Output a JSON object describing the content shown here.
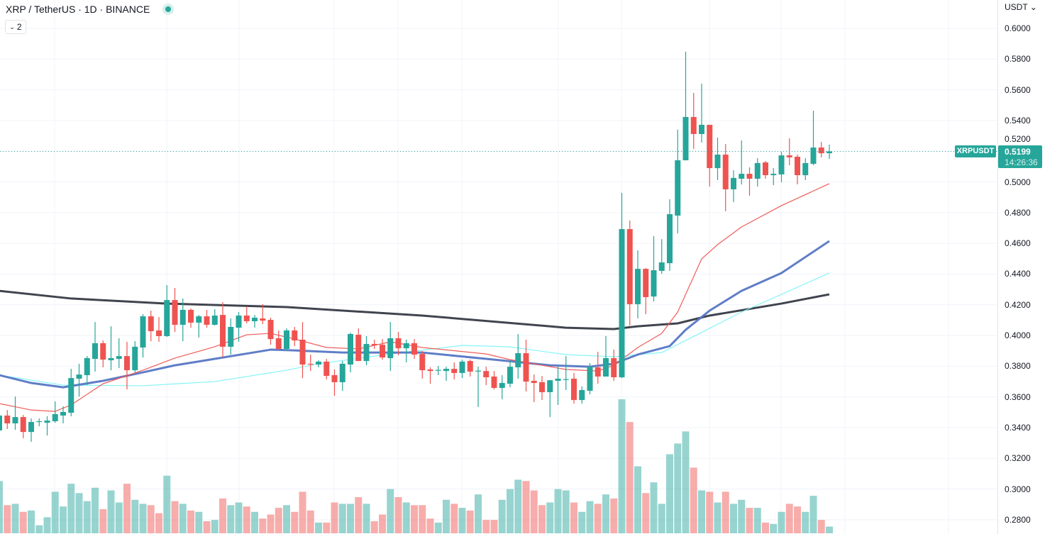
{
  "header": {
    "title": "XRP / TetherUS · 1D · BINANCE",
    "indicator_toggle_label": "2",
    "status_color": "#26a69a"
  },
  "price_axis": {
    "currency_label": "USDT ⌄"
  },
  "last_price": {
    "symbol": "XRPUSDT",
    "price": "0.5199",
    "countdown": "14:26:36"
  },
  "colors": {
    "up": "#26a69a",
    "down": "#ef5350",
    "ma_red": "#ef5350",
    "ma_blue": "#5676c4",
    "ma_cyan": "#7ff3f8",
    "ma_dark": "#363a45"
  },
  "chart_data": {
    "type": "candlestick",
    "ylim": [
      0.27,
      0.6
    ],
    "yticks": [
      "0.6000",
      "0.5800",
      "0.5600",
      "0.5400",
      "0.5200",
      "0.5000",
      "0.4800",
      "0.4600",
      "0.4400",
      "0.4200",
      "0.4000",
      "0.3800",
      "0.3600",
      "0.3400",
      "0.3200",
      "0.3000",
      "0.2800"
    ],
    "grid": true,
    "ohlc_fields": [
      "open",
      "high",
      "low",
      "close"
    ],
    "candles": [
      [
        0.3382,
        0.3515,
        0.3359,
        0.3479
      ],
      [
        0.3479,
        0.3515,
        0.3391,
        0.3428
      ],
      [
        0.3428,
        0.3603,
        0.3386,
        0.3469
      ],
      [
        0.3469,
        0.3483,
        0.3331,
        0.3372
      ],
      [
        0.3372,
        0.346,
        0.3308,
        0.3437
      ],
      [
        0.3437,
        0.346,
        0.3409,
        0.3442
      ],
      [
        0.3432,
        0.3474,
        0.3349,
        0.3446
      ],
      [
        0.3442,
        0.3571,
        0.3432,
        0.3488
      ],
      [
        0.3479,
        0.3539,
        0.3428,
        0.3502
      ],
      [
        0.3497,
        0.3783,
        0.3474,
        0.3723
      ],
      [
        0.3719,
        0.3816,
        0.3603,
        0.3746
      ],
      [
        0.3742,
        0.3866,
        0.3677,
        0.3853
      ],
      [
        0.3848,
        0.4088,
        0.3765,
        0.395
      ],
      [
        0.395,
        0.3968,
        0.3793,
        0.3843
      ],
      [
        0.3839,
        0.406,
        0.3774,
        0.3853
      ],
      [
        0.3848,
        0.3982,
        0.3788,
        0.3866
      ],
      [
        0.3866,
        0.3959,
        0.3649,
        0.3774
      ],
      [
        0.3774,
        0.3963,
        0.376,
        0.3927
      ],
      [
        0.3922,
        0.4139,
        0.3857,
        0.4125
      ],
      [
        0.4125,
        0.4162,
        0.3963,
        0.4028
      ],
      [
        0.4033,
        0.412,
        0.3959,
        0.3996
      ],
      [
        0.3996,
        0.4328,
        0.3991,
        0.4231
      ],
      [
        0.4231,
        0.431,
        0.4023,
        0.407
      ],
      [
        0.407,
        0.4241,
        0.3963,
        0.4167
      ],
      [
        0.4167,
        0.4176,
        0.4051,
        0.4084
      ],
      [
        0.4084,
        0.4134,
        0.3987,
        0.4125
      ],
      [
        0.4125,
        0.4167,
        0.4051,
        0.407
      ],
      [
        0.407,
        0.4171,
        0.4065,
        0.413
      ],
      [
        0.4134,
        0.4217,
        0.3857,
        0.3927
      ],
      [
        0.3927,
        0.4111,
        0.3876,
        0.4056
      ],
      [
        0.4051,
        0.4153,
        0.3959,
        0.413
      ],
      [
        0.413,
        0.419,
        0.4079,
        0.4093
      ],
      [
        0.4093,
        0.4134,
        0.4051,
        0.4116
      ],
      [
        0.4111,
        0.4204,
        0.4074,
        0.4097
      ],
      [
        0.4102,
        0.4116,
        0.394,
        0.3977
      ],
      [
        0.3982,
        0.4033,
        0.3908,
        0.3913
      ],
      [
        0.3913,
        0.4047,
        0.3899,
        0.4033
      ],
      [
        0.4033,
        0.4056,
        0.3931,
        0.3968
      ],
      [
        0.3973,
        0.4088,
        0.3723,
        0.3811
      ],
      [
        0.3816,
        0.3876,
        0.3769,
        0.3811
      ],
      [
        0.3811,
        0.3839,
        0.3793,
        0.383
      ],
      [
        0.383,
        0.3848,
        0.3714,
        0.3737
      ],
      [
        0.3742,
        0.3779,
        0.3608,
        0.3696
      ],
      [
        0.3696,
        0.3834,
        0.364,
        0.3816
      ],
      [
        0.3811,
        0.4019,
        0.376,
        0.401
      ],
      [
        0.4005,
        0.4047,
        0.3834,
        0.3834
      ],
      [
        0.3834,
        0.3996,
        0.3806,
        0.3945
      ],
      [
        0.3945,
        0.3973,
        0.3913,
        0.3936
      ],
      [
        0.394,
        0.3977,
        0.3843,
        0.3857
      ],
      [
        0.3853,
        0.4088,
        0.3769,
        0.3982
      ],
      [
        0.3982,
        0.4023,
        0.3871,
        0.3917
      ],
      [
        0.3917,
        0.3973,
        0.3825,
        0.395
      ],
      [
        0.395,
        0.3977,
        0.3848,
        0.3876
      ],
      [
        0.388,
        0.3899,
        0.3719,
        0.3774
      ],
      [
        0.3779,
        0.3793,
        0.3686,
        0.3769
      ],
      [
        0.3774,
        0.3802,
        0.3742,
        0.3776
      ],
      [
        0.3769,
        0.3797,
        0.3705,
        0.3783
      ],
      [
        0.3783,
        0.3825,
        0.3714,
        0.3756
      ],
      [
        0.3756,
        0.3843,
        0.3723,
        0.383
      ],
      [
        0.3834,
        0.3843,
        0.3733,
        0.3765
      ],
      [
        0.3769,
        0.3797,
        0.3534,
        0.3771
      ],
      [
        0.3769,
        0.3797,
        0.3677,
        0.3728
      ],
      [
        0.3733,
        0.3769,
        0.3649,
        0.3659
      ],
      [
        0.3659,
        0.3742,
        0.3585,
        0.3691
      ],
      [
        0.3686,
        0.3839,
        0.3663,
        0.3797
      ],
      [
        0.3793,
        0.401,
        0.3719,
        0.3885
      ],
      [
        0.3885,
        0.3973,
        0.3636,
        0.37
      ],
      [
        0.3705,
        0.3746,
        0.3566,
        0.3691
      ],
      [
        0.3696,
        0.3737,
        0.358,
        0.3631
      ],
      [
        0.3631,
        0.3709,
        0.3469,
        0.3709
      ],
      [
        0.3705,
        0.3797,
        0.3548,
        0.3719
      ],
      [
        0.3714,
        0.3866,
        0.3645,
        0.3716
      ],
      [
        0.3719,
        0.3756,
        0.3557,
        0.358
      ],
      [
        0.358,
        0.3668,
        0.3557,
        0.3645
      ],
      [
        0.364,
        0.382,
        0.3617,
        0.3797
      ],
      [
        0.3793,
        0.3894,
        0.3686,
        0.3733
      ],
      [
        0.3733,
        0.3996,
        0.3733,
        0.3853
      ],
      [
        0.3853,
        0.3908,
        0.3705,
        0.3728
      ],
      [
        0.3728,
        0.4929,
        0.3723,
        0.4693
      ],
      [
        0.4693,
        0.4749,
        0.4065,
        0.4204
      ],
      [
        0.4204,
        0.4555,
        0.4111,
        0.4434
      ],
      [
        0.4434,
        0.4439,
        0.4139,
        0.425
      ],
      [
        0.4254,
        0.4647,
        0.4222,
        0.4425
      ],
      [
        0.4421,
        0.4628,
        0.4402,
        0.4476
      ],
      [
        0.4471,
        0.4887,
        0.4421,
        0.479
      ],
      [
        0.4781,
        0.534,
        0.4665,
        0.5141
      ],
      [
        0.5141,
        0.5848,
        0.5141,
        0.5423
      ],
      [
        0.5423,
        0.558,
        0.5215,
        0.5312
      ],
      [
        0.5312,
        0.564,
        0.5256,
        0.5372
      ],
      [
        0.5372,
        0.5372,
        0.497,
        0.509
      ],
      [
        0.509,
        0.5289,
        0.5012,
        0.5178
      ],
      [
        0.5178,
        0.5247,
        0.4809,
        0.4952
      ],
      [
        0.4952,
        0.5076,
        0.4869,
        0.5026
      ],
      [
        0.5021,
        0.527,
        0.4984,
        0.5053
      ],
      [
        0.5053,
        0.5095,
        0.491,
        0.5021
      ],
      [
        0.5021,
        0.5155,
        0.497,
        0.5123
      ],
      [
        0.5127,
        0.5136,
        0.5021,
        0.5044
      ],
      [
        0.5044,
        0.509,
        0.4979,
        0.5053
      ],
      [
        0.5049,
        0.5196,
        0.4998,
        0.5173
      ],
      [
        0.5173,
        0.5284,
        0.5109,
        0.516
      ],
      [
        0.5164,
        0.5178,
        0.4984,
        0.5044
      ],
      [
        0.5044,
        0.5155,
        0.5012,
        0.5123
      ],
      [
        0.5118,
        0.5464,
        0.5109,
        0.5224
      ],
      [
        0.5224,
        0.5261,
        0.516,
        0.5187
      ],
      [
        0.5187,
        0.5243,
        0.515,
        0.5199
      ]
    ],
    "volume_relative": [
      39,
      21,
      22,
      16,
      17,
      6,
      12,
      31,
      20,
      37,
      30,
      24,
      34,
      18,
      32,
      23,
      37,
      25,
      22,
      21,
      15,
      43,
      24,
      22,
      17,
      16,
      9,
      10,
      26,
      21,
      23,
      20,
      16,
      11,
      14,
      19,
      21,
      16,
      31,
      17,
      8,
      8,
      23,
      22,
      22,
      27,
      22,
      9,
      14,
      33,
      27,
      23,
      21,
      21,
      11,
      8,
      25,
      22,
      19,
      17,
      29,
      10,
      10,
      25,
      33,
      40,
      39,
      32,
      21,
      23,
      33,
      32,
      23,
      16,
      24,
      22,
      29,
      26,
      100,
      83,
      50,
      30,
      38,
      22,
      59,
      67,
      76,
      49,
      32,
      31,
      23,
      31,
      22,
      25,
      19,
      19,
      8,
      7,
      16,
      22,
      20,
      16,
      28,
      10,
      5
    ],
    "moving_averages": [
      {
        "color": "#363a45",
        "width": "thick",
        "points": [
          [
            0,
            0.4291
          ],
          [
            9,
            0.4241
          ],
          [
            21,
            0.4208
          ],
          [
            36,
            0.4185
          ],
          [
            53,
            0.413
          ],
          [
            71,
            0.4051
          ],
          [
            77,
            0.4042
          ],
          [
            80,
            0.406
          ],
          [
            85,
            0.4079
          ],
          [
            89,
            0.413
          ],
          [
            98,
            0.4208
          ],
          [
            104,
            0.4268
          ]
        ]
      },
      {
        "color": "#7ff3f8",
        "width": "thin",
        "points": [
          [
            0,
            0.3742
          ],
          [
            8,
            0.3677
          ],
          [
            18,
            0.3673
          ],
          [
            27,
            0.37
          ],
          [
            36,
            0.3774
          ],
          [
            40,
            0.3816
          ],
          [
            49,
            0.388
          ],
          [
            58,
            0.3936
          ],
          [
            64,
            0.3926
          ],
          [
            71,
            0.3876
          ],
          [
            77,
            0.3862
          ],
          [
            83,
            0.3889
          ],
          [
            86,
            0.3968
          ],
          [
            89,
            0.4047
          ],
          [
            93,
            0.4153
          ],
          [
            98,
            0.4268
          ],
          [
            104,
            0.4407
          ]
        ]
      },
      {
        "color": "#5676c4",
        "width": "thick",
        "points": [
          [
            0,
            0.3742
          ],
          [
            4,
            0.3691
          ],
          [
            8,
            0.3663
          ],
          [
            13,
            0.3705
          ],
          [
            18,
            0.376
          ],
          [
            22,
            0.3806
          ],
          [
            27,
            0.3848
          ],
          [
            34,
            0.3908
          ],
          [
            37,
            0.3903
          ],
          [
            43,
            0.3889
          ],
          [
            49,
            0.3889
          ],
          [
            53,
            0.3889
          ],
          [
            62,
            0.3843
          ],
          [
            69,
            0.3806
          ],
          [
            74,
            0.3797
          ],
          [
            77,
            0.3816
          ],
          [
            80,
            0.3876
          ],
          [
            84,
            0.3931
          ],
          [
            86,
            0.4037
          ],
          [
            89,
            0.4162
          ],
          [
            93,
            0.4291
          ],
          [
            98,
            0.4407
          ],
          [
            104,
            0.4615
          ]
        ]
      },
      {
        "color": "#ef5350",
        "width": "thin",
        "points": [
          [
            0,
            0.3557
          ],
          [
            4,
            0.3515
          ],
          [
            7,
            0.3506
          ],
          [
            9,
            0.3548
          ],
          [
            13,
            0.3686
          ],
          [
            18,
            0.3774
          ],
          [
            22,
            0.3853
          ],
          [
            27,
            0.3927
          ],
          [
            31,
            0.4005
          ],
          [
            34,
            0.4014
          ],
          [
            37,
            0.3977
          ],
          [
            41,
            0.3922
          ],
          [
            45,
            0.3913
          ],
          [
            49,
            0.3959
          ],
          [
            53,
            0.3922
          ],
          [
            61,
            0.388
          ],
          [
            64,
            0.3843
          ],
          [
            71,
            0.3779
          ],
          [
            75,
            0.3769
          ],
          [
            77,
            0.3806
          ],
          [
            80,
            0.3922
          ],
          [
            83,
            0.4014
          ],
          [
            85,
            0.4153
          ],
          [
            88,
            0.4499
          ],
          [
            90,
            0.4592
          ],
          [
            93,
            0.4707
          ],
          [
            98,
            0.4846
          ],
          [
            104,
            0.4989
          ]
        ]
      }
    ],
    "last_price": 0.5199
  }
}
